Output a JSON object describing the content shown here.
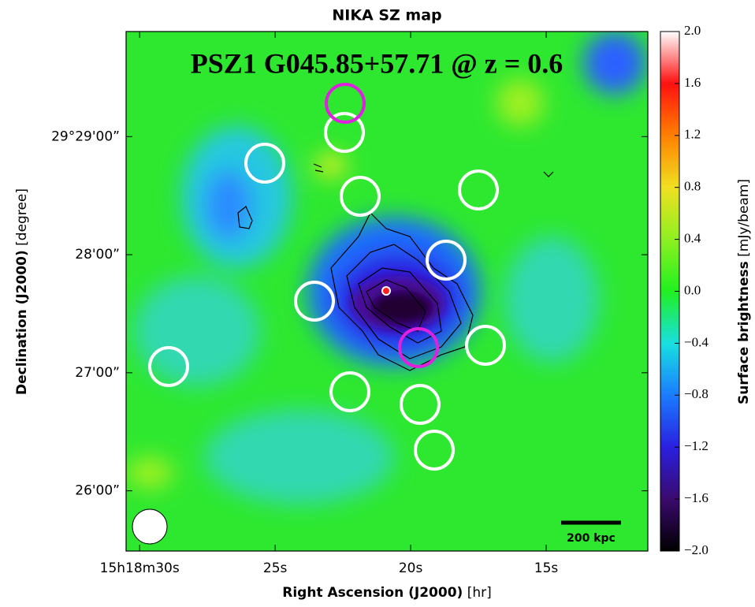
{
  "chart_data": {
    "type": "image-map",
    "title": "NIKA SZ map",
    "annotation": "PSZ1 G045.85+57.71 @ z = 0.6",
    "scale_bar_label": "200 kpc",
    "x_label": "Right Ascension (J2000)",
    "x_unit": "[hr]",
    "y_label": "Declination (J2000)",
    "y_unit": "[degree]",
    "xlim": [
      30.5,
      11.25
    ],
    "xticks": [
      {
        "value": 30,
        "label": "15h18m30s"
      },
      {
        "value": 25,
        "label": "25s"
      },
      {
        "value": 20,
        "label": "20s"
      },
      {
        "value": 15,
        "label": "15s"
      }
    ],
    "ylim": [
      25.49,
      29.89
    ],
    "yticks": [
      {
        "value": 29,
        "label": "29°29'00”"
      },
      {
        "value": 28,
        "label": "28'00”"
      },
      {
        "value": 27,
        "label": "27'00”"
      },
      {
        "value": 26,
        "label": "26'00”"
      }
    ],
    "colorbar": {
      "label": "Surface brightness",
      "unit": "[mJy/beam]",
      "clim": [
        -2,
        2
      ],
      "colors": [
        "#000000",
        "#3a0a6e",
        "#2a20e0",
        "#1a7cff",
        "#18e0e0",
        "#20f020",
        "#8ef020",
        "#f0e020",
        "#ff8000",
        "#ff1010",
        "#ffffff"
      ],
      "ticks": [
        {
          "value": 2,
          "label": "2.0"
        },
        1.6,
        1.2,
        0.8,
        0.4,
        {
          "value": 0,
          "label": "0.0"
        },
        {
          "value": -0.4,
          "label": "−0.4"
        },
        {
          "value": -0.8,
          "label": "−0.8"
        },
        {
          "value": -1.2,
          "label": "−1.2"
        },
        {
          "value": -1.6,
          "label": "−1.6"
        },
        {
          "value": -2,
          "label": "−2.0"
        }
      ]
    }
  }
}
